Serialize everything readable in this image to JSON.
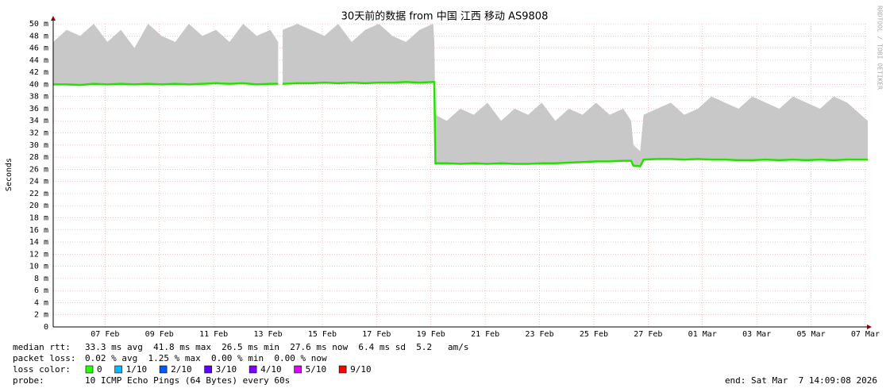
{
  "chart_data": {
    "type": "line",
    "title": "30天前的数据 from 中国 江西 移动 AS9808",
    "y_label": "Seconds",
    "watermark": "RRDTOOL / TOBI OETIKER",
    "grid": true,
    "xlim": [
      "2026-02-05T14:09",
      "2026-03-07T14:09"
    ],
    "xticks": [
      {
        "value": "2026-02-07T12:00",
        "label": "07 Feb"
      },
      {
        "value": "2026-02-09T12:00",
        "label": "09 Feb"
      },
      {
        "value": "2026-02-11T12:00",
        "label": "11 Feb"
      },
      {
        "value": "2026-02-13T12:00",
        "label": "13 Feb"
      },
      {
        "value": "2026-02-15T12:00",
        "label": "15 Feb"
      },
      {
        "value": "2026-02-17T12:00",
        "label": "17 Feb"
      },
      {
        "value": "2026-02-19T12:00",
        "label": "19 Feb"
      },
      {
        "value": "2026-02-21T12:00",
        "label": "21 Feb"
      },
      {
        "value": "2026-02-23T12:00",
        "label": "23 Feb"
      },
      {
        "value": "2026-02-25T12:00",
        "label": "25 Feb"
      },
      {
        "value": "2026-02-27T12:00",
        "label": "27 Feb"
      },
      {
        "value": "2026-03-01T12:00",
        "label": "01 Mar"
      },
      {
        "value": "2026-03-03T12:00",
        "label": "03 Mar"
      },
      {
        "value": "2026-03-05T12:00",
        "label": "05 Mar"
      },
      {
        "value": "2026-03-07T12:00",
        "label": "07 Mar"
      }
    ],
    "ylim": [
      0,
      50
    ],
    "yticks": [
      0,
      {
        "value": 2,
        "label": "2 m"
      },
      {
        "value": 4,
        "label": "4 m"
      },
      {
        "value": 6,
        "label": "6 m"
      },
      {
        "value": 8,
        "label": "8 m"
      },
      {
        "value": 10,
        "label": "10 m"
      },
      {
        "value": 12,
        "label": "12 m"
      },
      {
        "value": 14,
        "label": "14 m"
      },
      {
        "value": 16,
        "label": "16 m"
      },
      {
        "value": 18,
        "label": "18 m"
      },
      {
        "value": 20,
        "label": "20 m"
      },
      {
        "value": 22,
        "label": "22 m"
      },
      {
        "value": 24,
        "label": "24 m"
      },
      {
        "value": 26,
        "label": "26 m"
      },
      {
        "value": 28,
        "label": "28 m"
      },
      {
        "value": 30,
        "label": "30 m"
      },
      {
        "value": 32,
        "label": "32 m"
      },
      {
        "value": 34,
        "label": "34 m"
      },
      {
        "value": 36,
        "label": "36 m"
      },
      {
        "value": 38,
        "label": "38 m"
      },
      {
        "value": 40,
        "label": "40 m"
      },
      {
        "value": 42,
        "label": "42 m"
      },
      {
        "value": 44,
        "label": "44 m"
      },
      {
        "value": 46,
        "label": "46 m"
      },
      {
        "value": 48,
        "label": "48 m"
      },
      {
        "value": 50,
        "label": "50 m"
      }
    ],
    "x": [
      "2026-02-05T14:09",
      "2026-02-06T02:00",
      "2026-02-06T14:00",
      "2026-02-07T02:00",
      "2026-02-07T14:00",
      "2026-02-08T02:00",
      "2026-02-08T14:00",
      "2026-02-09T02:00",
      "2026-02-09T14:00",
      "2026-02-10T02:00",
      "2026-02-10T14:00",
      "2026-02-11T02:00",
      "2026-02-11T14:00",
      "2026-02-12T02:00",
      "2026-02-12T14:00",
      "2026-02-13T02:00",
      "2026-02-13T14:00",
      "2026-02-13T21:00",
      "2026-02-13T23:30",
      "2026-02-14T01:00",
      "2026-02-14T14:00",
      "2026-02-15T02:00",
      "2026-02-15T14:00",
      "2026-02-16T02:00",
      "2026-02-16T14:00",
      "2026-02-17T02:00",
      "2026-02-17T14:00",
      "2026-02-18T02:00",
      "2026-02-18T14:00",
      "2026-02-19T02:00",
      "2026-02-19T14:00",
      "2026-02-19T15:00",
      "2026-02-19T16:00",
      "2026-02-20T02:00",
      "2026-02-20T14:00",
      "2026-02-21T02:00",
      "2026-02-21T14:00",
      "2026-02-22T02:00",
      "2026-02-22T14:00",
      "2026-02-23T02:00",
      "2026-02-23T14:00",
      "2026-02-24T02:00",
      "2026-02-24T14:00",
      "2026-02-25T02:00",
      "2026-02-25T14:00",
      "2026-02-26T02:00",
      "2026-02-26T14:00",
      "2026-02-26T21:00",
      "2026-02-26T23:00",
      "2026-02-27T05:00",
      "2026-02-27T08:00",
      "2026-02-27T20:00",
      "2026-02-28T08:00",
      "2026-02-28T20:00",
      "2026-03-01T08:00",
      "2026-03-01T20:00",
      "2026-03-02T08:00",
      "2026-03-02T20:00",
      "2026-03-03T08:00",
      "2026-03-03T20:00",
      "2026-03-04T08:00",
      "2026-03-04T20:00",
      "2026-03-05T08:00",
      "2026-03-05T20:00",
      "2026-03-06T08:00",
      "2026-03-06T20:00",
      "2026-03-07T08:00",
      "2026-03-07T14:09"
    ],
    "series": [
      {
        "style": "smoke",
        "color": "#c8c8c8",
        "values": [
          47,
          49,
          48,
          50,
          47,
          49,
          46,
          50,
          48,
          47,
          50,
          48,
          49,
          47,
          50,
          48,
          49,
          47,
          null,
          49,
          50,
          49,
          48,
          50,
          47,
          49,
          50,
          48,
          47,
          49,
          50,
          47,
          35,
          34,
          36,
          35,
          37,
          34,
          36,
          35,
          37,
          34,
          36,
          35,
          37,
          35,
          36,
          34,
          30,
          29,
          35,
          36,
          37,
          35,
          36,
          38,
          37,
          36,
          38,
          37,
          36,
          38,
          37,
          36,
          38,
          37,
          35,
          34
        ]
      },
      {
        "style": "line",
        "color": "#26e000",
        "values": [
          40.0,
          40.0,
          39.9,
          40.1,
          40.0,
          40.1,
          40.0,
          40.1,
          40.0,
          40.1,
          40.0,
          40.1,
          40.2,
          40.1,
          40.2,
          40.0,
          40.1,
          40.1,
          null,
          40.1,
          40.2,
          40.2,
          40.3,
          40.2,
          40.3,
          40.2,
          40.3,
          40.3,
          40.4,
          40.3,
          40.4,
          40.4,
          27.0,
          27.0,
          26.9,
          27.0,
          26.9,
          27.0,
          26.9,
          26.9,
          27.0,
          27.0,
          27.1,
          27.2,
          27.3,
          27.3,
          27.4,
          27.4,
          26.6,
          26.5,
          27.6,
          27.7,
          27.7,
          27.6,
          27.7,
          27.6,
          27.6,
          27.5,
          27.5,
          27.6,
          27.5,
          27.6,
          27.5,
          27.6,
          27.5,
          27.6,
          27.6,
          27.6
        ]
      }
    ]
  },
  "footer": {
    "rows": [
      {
        "label": "median rtt:",
        "text": "33.3 ms avg  41.8 ms max  26.5 ms min  27.6 ms now  6.4 ms sd  5.2   am/s"
      },
      {
        "label": "packet loss:",
        "text": "0.02 % avg  1.25 % max  0.00 % min  0.00 % now"
      }
    ],
    "loss_color": {
      "label": "loss color:",
      "items": [
        {
          "label": "0",
          "color": "#26ff00"
        },
        {
          "label": "1/10",
          "color": "#00b8ff"
        },
        {
          "label": "2/10",
          "color": "#0059ff"
        },
        {
          "label": "3/10",
          "color": "#5e00ff"
        },
        {
          "label": "4/10",
          "color": "#7e00ff"
        },
        {
          "label": "5/10",
          "color": "#dd00ff"
        },
        {
          "label": "9/10",
          "color": "#ff0000"
        }
      ]
    },
    "probe": {
      "label": "probe:",
      "text": "10 ICMP Echo Pings (64 Bytes) every 60s"
    },
    "end": "end: Sat Mar  7 14:09:08 2026"
  }
}
